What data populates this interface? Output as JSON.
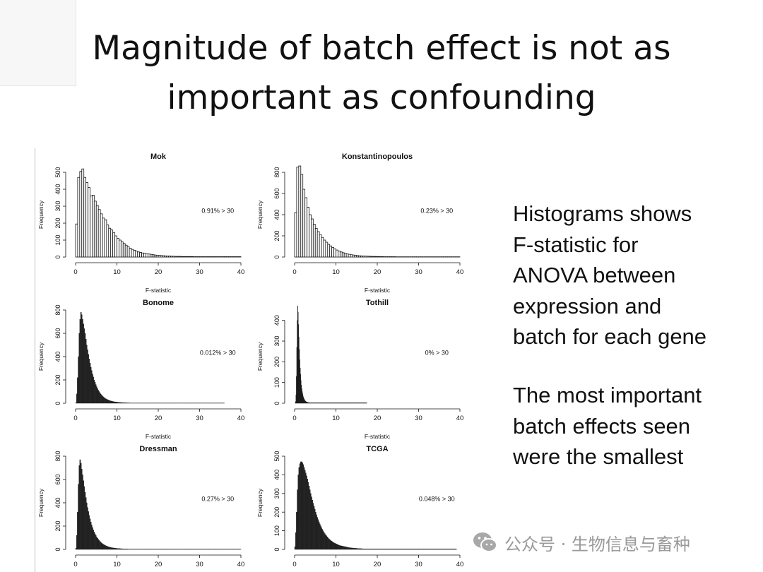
{
  "slide": {
    "title_lines": [
      "Magnitude of batch effect is not as",
      "important as confounding"
    ],
    "paragraph1_lines": [
      "Histograms shows",
      "F-statistic for",
      "ANOVA between",
      "expression and",
      "batch for each gene"
    ],
    "paragraph2_lines": [
      "The most important",
      "batch effects seen",
      "were the smallest"
    ],
    "watermark": "公众号 · 生物信息与畜种",
    "watermark_icon": "wechat-icon"
  },
  "chart_data": [
    {
      "type": "bar",
      "title": "Mok",
      "xlabel": "F-statistic",
      "ylabel": "Frequency",
      "annotation": "0.91% > 30",
      "xlim": [
        0,
        40
      ],
      "ylim": [
        0,
        500
      ],
      "xticks": [
        0,
        10,
        20,
        30,
        40
      ],
      "yticks": [
        0,
        100,
        200,
        300,
        400,
        500
      ],
      "bin_width": 0.5,
      "values": [
        195,
        470,
        505,
        520,
        470,
        440,
        410,
        360,
        365,
        330,
        305,
        280,
        255,
        230,
        220,
        190,
        170,
        160,
        145,
        125,
        110,
        100,
        90,
        80,
        70,
        60,
        52,
        45,
        40,
        35,
        30,
        27,
        24,
        22,
        20,
        18,
        16,
        14,
        12,
        11,
        10,
        9,
        8,
        7,
        6,
        6,
        5,
        5,
        4,
        4,
        4,
        3,
        3,
        3,
        3,
        3,
        3,
        2,
        2,
        2,
        2,
        2,
        2,
        2,
        2,
        2,
        2,
        2,
        2,
        2,
        2,
        2,
        2,
        2,
        2,
        2,
        2,
        2,
        2,
        2
      ]
    },
    {
      "type": "bar",
      "title": "Konstantinopoulos",
      "xlabel": "F-statistic",
      "ylabel": "Frequency",
      "annotation": "0.23% > 30",
      "xlim": [
        0,
        40
      ],
      "ylim": [
        0,
        800
      ],
      "xticks": [
        0,
        10,
        20,
        30,
        40
      ],
      "yticks": [
        0,
        200,
        400,
        600,
        800
      ],
      "bin_width": 0.5,
      "values": [
        420,
        850,
        860,
        780,
        640,
        560,
        470,
        400,
        360,
        310,
        270,
        240,
        210,
        185,
        160,
        140,
        120,
        105,
        90,
        78,
        66,
        56,
        48,
        41,
        35,
        30,
        26,
        22,
        19,
        16,
        14,
        12,
        11,
        10,
        9,
        8,
        7,
        6,
        6,
        5,
        5,
        4,
        4,
        3,
        3,
        3,
        3,
        3,
        3,
        2,
        2,
        2,
        2,
        2,
        2,
        2,
        2,
        2,
        2,
        2,
        2,
        2,
        2,
        2,
        2,
        2,
        2,
        2,
        2,
        2,
        2,
        2,
        2,
        2,
        2,
        2,
        2,
        2,
        2,
        2
      ]
    },
    {
      "type": "bar",
      "title": "Bonome",
      "xlabel": "F-statistic",
      "ylabel": "Frequency",
      "annotation": "0.012% > 30",
      "xlim": [
        0,
        40
      ],
      "ylim": [
        0,
        800
      ],
      "xticks": [
        0,
        10,
        20,
        30,
        40
      ],
      "yticks": [
        0,
        200,
        400,
        600,
        800
      ],
      "bin_width": 0.2,
      "values": [
        5,
        80,
        220,
        400,
        600,
        720,
        780,
        760,
        720,
        680,
        640,
        600,
        550,
        500,
        460,
        420,
        380,
        345,
        310,
        280,
        250,
        225,
        200,
        180,
        160,
        142,
        126,
        112,
        100,
        89,
        79,
        70,
        62,
        55,
        49,
        44,
        39,
        35,
        31,
        28,
        25,
        22,
        20,
        18,
        16,
        14,
        13,
        12,
        11,
        10,
        9,
        8,
        7,
        7,
        6,
        6,
        5,
        5,
        4,
        4,
        4,
        3,
        3,
        3,
        3,
        2,
        2,
        2,
        2,
        2,
        2,
        2,
        2,
        2,
        2,
        2,
        2,
        2,
        2,
        2,
        2,
        2,
        2,
        2,
        2,
        2,
        2,
        2,
        2,
        2,
        2,
        2,
        2,
        2,
        2,
        2,
        2,
        2,
        2,
        2,
        2,
        2,
        2,
        2,
        2,
        2,
        2,
        2,
        2,
        2,
        2,
        2,
        2,
        2,
        2,
        2,
        2,
        2,
        2,
        2,
        2,
        2,
        2,
        2,
        2,
        2,
        2,
        2,
        2,
        2,
        2,
        2,
        2,
        2,
        2,
        2,
        2,
        2,
        2,
        2,
        2,
        2,
        2,
        2,
        2,
        2,
        2,
        2,
        2,
        2,
        2,
        2,
        2,
        2,
        2,
        2,
        2,
        2,
        2,
        2,
        2,
        2,
        2,
        2,
        2,
        2,
        2,
        2,
        2,
        2,
        2,
        2,
        2,
        2,
        2,
        2,
        2,
        2,
        2,
        2
      ]
    },
    {
      "type": "bar",
      "title": "Tothill",
      "xlabel": "F-statistic",
      "ylabel": "Frequency",
      "annotation": "0% > 30",
      "xlim": [
        0,
        40
      ],
      "ylim": [
        0,
        450
      ],
      "xticks": [
        0,
        10,
        20,
        30,
        40
      ],
      "yticks": [
        0,
        100,
        200,
        300,
        400
      ],
      "bin_width": 0.1,
      "values": [
        0,
        2,
        8,
        40,
        130,
        270,
        400,
        470,
        440,
        380,
        320,
        260,
        210,
        170,
        140,
        110,
        88,
        70,
        56,
        45,
        36,
        29,
        23,
        19,
        15,
        12,
        10,
        8,
        7,
        6,
        5,
        4,
        4,
        3,
        3,
        3,
        2,
        2,
        2,
        2,
        2,
        2,
        2,
        2,
        2,
        2,
        2,
        2,
        2,
        2,
        2,
        2,
        2,
        2,
        2,
        2,
        2,
        2,
        2,
        2,
        2,
        2,
        2,
        2,
        2,
        2,
        2,
        2,
        2,
        2,
        2,
        2,
        2,
        2,
        2,
        2,
        2,
        2,
        2,
        2,
        2,
        2,
        2,
        2,
        2,
        2,
        2,
        2,
        2,
        2,
        2,
        2,
        2,
        2,
        2,
        2,
        2,
        2,
        2,
        2,
        2,
        2,
        2,
        2,
        2,
        2,
        2,
        2,
        2,
        2,
        2,
        2,
        2,
        2,
        2,
        2,
        2,
        2,
        2,
        2,
        2,
        2,
        2,
        2,
        2,
        2,
        2,
        2,
        2,
        2,
        2,
        2,
        2,
        2,
        2,
        2,
        2,
        2,
        2,
        2,
        2,
        2,
        2,
        2,
        2,
        2,
        2,
        2,
        2,
        2,
        2,
        2,
        2,
        2,
        2,
        2,
        2,
        2,
        2,
        2,
        2,
        2,
        2,
        2,
        2,
        2,
        2,
        2,
        2,
        2,
        2,
        2,
        2,
        2,
        2
      ]
    },
    {
      "type": "bar",
      "title": "Dressman",
      "xlabel": "",
      "ylabel": "Frequency",
      "annotation": "0.27% > 30",
      "xlim": [
        0,
        40
      ],
      "ylim": [
        0,
        800
      ],
      "xticks": [
        0,
        10,
        20,
        30,
        40
      ],
      "yticks": [
        0,
        200,
        400,
        600,
        800
      ],
      "bin_width": 0.2,
      "values": [
        10,
        120,
        320,
        560,
        720,
        770,
        740,
        690,
        640,
        590,
        540,
        490,
        445,
        400,
        360,
        325,
        292,
        262,
        235,
        210,
        188,
        168,
        150,
        134,
        120,
        107,
        96,
        86,
        77,
        69,
        62,
        55,
        49,
        44,
        40,
        36,
        32,
        29,
        26,
        23,
        21,
        19,
        17,
        15,
        14,
        13,
        12,
        11,
        10,
        9,
        8,
        8,
        7,
        7,
        6,
        6,
        5,
        5,
        5,
        4,
        4,
        4,
        4,
        3,
        3,
        3,
        3,
        3,
        3,
        3,
        3,
        3,
        3,
        3,
        3,
        3,
        3,
        3,
        3,
        3,
        3,
        3,
        3,
        3,
        3,
        3,
        3,
        3,
        3,
        3,
        3,
        3,
        3,
        3,
        3,
        3,
        3,
        3,
        3,
        3,
        3,
        3,
        3,
        3,
        3,
        3,
        3,
        3,
        3,
        3,
        3,
        3,
        3,
        3,
        3,
        3,
        3,
        3,
        3,
        3,
        3,
        3,
        3,
        3,
        3,
        3,
        3,
        3,
        3,
        3,
        3,
        3,
        3,
        3,
        3,
        3,
        3,
        3,
        3,
        3,
        3,
        3,
        3,
        3,
        3,
        3,
        3,
        3,
        3,
        3,
        3,
        3,
        3,
        3,
        3,
        3,
        3,
        3,
        3,
        3,
        3,
        3,
        3,
        3,
        3,
        3,
        3,
        3,
        3,
        3,
        3,
        3,
        3,
        3,
        3,
        3,
        3,
        3,
        3,
        3,
        3,
        3,
        3,
        3,
        3,
        3,
        3,
        3,
        3,
        3,
        3,
        3,
        3,
        3,
        3,
        3,
        3,
        3,
        3,
        3
      ]
    },
    {
      "type": "bar",
      "title": "TCGA",
      "xlabel": "",
      "ylabel": "Frequency",
      "annotation": "0.048% > 30",
      "xlim": [
        0,
        40
      ],
      "ylim": [
        0,
        500
      ],
      "xticks": [
        0,
        10,
        20,
        30,
        40
      ],
      "yticks": [
        0,
        100,
        200,
        300,
        400,
        500
      ],
      "bin_width": 0.2,
      "values": [
        15,
        90,
        200,
        320,
        400,
        440,
        460,
        470,
        470,
        465,
        455,
        440,
        425,
        410,
        395,
        378,
        360,
        340,
        320,
        300,
        282,
        265,
        248,
        232,
        216,
        200,
        186,
        172,
        160,
        148,
        137,
        127,
        117,
        108,
        100,
        92,
        85,
        79,
        73,
        67,
        62,
        57,
        53,
        49,
        45,
        42,
        39,
        36,
        33,
        31,
        29,
        27,
        25,
        23,
        21,
        20,
        19,
        18,
        17,
        16,
        15,
        14,
        13,
        12,
        11,
        10,
        9,
        9,
        8,
        8,
        7,
        7,
        6,
        6,
        6,
        5,
        5,
        5,
        4,
        4,
        4,
        4,
        3,
        3,
        3,
        3,
        3,
        3,
        3,
        3,
        3,
        3,
        3,
        3,
        3,
        3,
        3,
        3,
        3,
        3,
        3,
        3,
        3,
        3,
        3,
        3,
        3,
        3,
        3,
        3,
        3,
        3,
        3,
        3,
        3,
        3,
        3,
        3,
        3,
        3,
        3,
        3,
        3,
        3,
        3,
        3,
        3,
        3,
        3,
        3,
        3,
        3,
        3,
        3,
        3,
        3,
        3,
        3,
        3,
        3,
        3,
        3,
        3,
        3,
        3,
        3,
        3,
        3,
        3,
        3,
        3,
        3,
        3,
        3,
        3,
        3,
        3,
        3,
        3,
        3,
        3,
        3,
        3,
        3,
        3,
        3,
        3,
        3,
        3,
        3,
        3,
        3,
        3,
        3,
        3,
        3,
        3,
        3,
        3,
        3,
        3,
        3,
        3,
        3,
        3,
        3,
        3,
        3,
        3,
        3,
        3,
        3,
        3,
        3,
        3,
        3
      ]
    }
  ]
}
